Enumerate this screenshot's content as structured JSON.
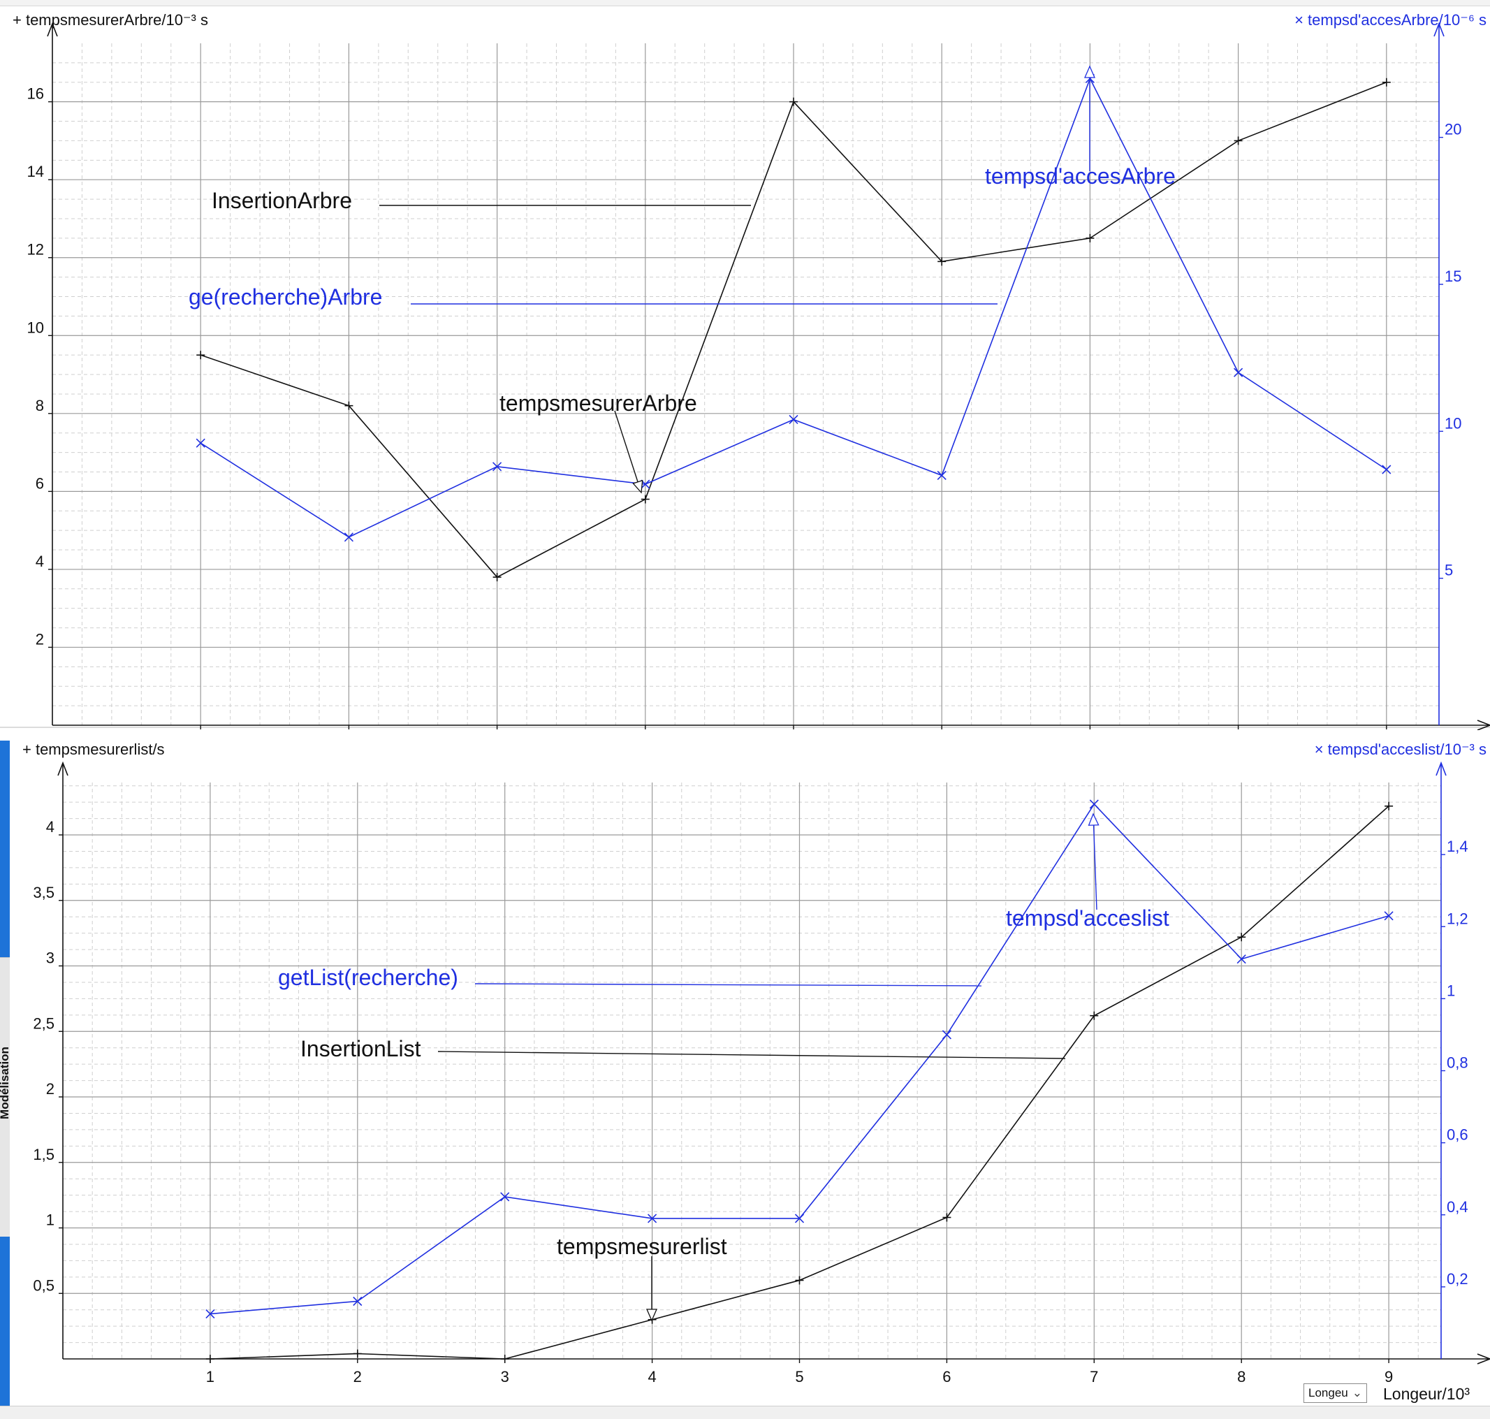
{
  "ui": {
    "side_tab_label": "Modélisation",
    "axis_selector_value": "Longeu",
    "axis_selector_chevron": "⌄"
  },
  "colors": {
    "black_series": "#111111",
    "blue_series": "#1f2fe0",
    "grid_major": "#9a9a9a",
    "grid_minor": "#cfcfcf"
  },
  "chart_data": [
    {
      "type": "line",
      "id": "arbre",
      "x": [
        1,
        2,
        3,
        4,
        5,
        6,
        7,
        8,
        9
      ],
      "xlabel": "Longeur/10³",
      "xlim": [
        0,
        9.35
      ],
      "xticks": [
        1,
        2,
        3,
        4,
        5,
        6,
        7,
        8,
        9
      ],
      "grid": true,
      "y_left": {
        "label": "+ tempsmesurerArbre/10⁻³ s",
        "lim": [
          0,
          17.5
        ],
        "ticks": [
          2,
          4,
          6,
          8,
          10,
          12,
          14,
          16
        ],
        "tick_labels": [
          "2",
          "4",
          "6",
          "8",
          "10",
          "12",
          "14",
          "16"
        ]
      },
      "y_right": {
        "label": "× tempsd'accesArbre/10⁻⁶ s",
        "lim": [
          0,
          23.2
        ],
        "ticks": [
          5,
          10,
          15,
          20
        ],
        "tick_labels": [
          "5",
          "10",
          "15",
          "20"
        ]
      },
      "series": [
        {
          "name": "tempsmesurerArbre",
          "axis": "left",
          "marker": "+",
          "color": "#111111",
          "values": [
            9.5,
            8.2,
            3.8,
            5.8,
            16.0,
            11.9,
            12.5,
            15.0,
            16.5
          ]
        },
        {
          "name": "tempsd'accesArbre",
          "axis": "right",
          "marker": "×",
          "color": "#1f2fe0",
          "values": [
            9.6,
            6.4,
            8.8,
            8.2,
            10.4,
            8.5,
            22.0,
            12.0,
            8.7
          ]
        }
      ],
      "annotations": [
        {
          "text": "InsertionArbre",
          "color": "#111111"
        },
        {
          "text": "ge(recherche)Arbre",
          "color": "#1f2fe0"
        },
        {
          "text": "tempsmesurerArbre",
          "color": "#111111"
        },
        {
          "text": "tempsd'accesArbre",
          "color": "#1f2fe0"
        }
      ]
    },
    {
      "type": "line",
      "id": "list",
      "x": [
        1,
        2,
        3,
        4,
        5,
        6,
        7,
        8,
        9
      ],
      "xlabel": "Longeur/10³",
      "xlim": [
        0,
        9.35
      ],
      "xticks": [
        1,
        2,
        3,
        4,
        5,
        6,
        7,
        8,
        9
      ],
      "grid": true,
      "y_left": {
        "label": "+ tempsmesurerlist/s",
        "lim": [
          0,
          4.4
        ],
        "ticks": [
          0.5,
          1,
          1.5,
          2,
          2.5,
          3,
          3.5,
          4
        ],
        "tick_labels": [
          "0,5",
          "1",
          "1,5",
          "2",
          "2,5",
          "3",
          "3,5",
          "4"
        ]
      },
      "y_right": {
        "label": "× tempsd'acceslist/10⁻³ s",
        "lim": [
          0,
          1.6
        ],
        "ticks": [
          0.2,
          0.4,
          0.6,
          0.8,
          1.0,
          1.2,
          1.4
        ],
        "tick_labels": [
          "0,2",
          "0,4",
          "0,6",
          "0,8",
          "1",
          "1,2",
          "1,4"
        ]
      },
      "series": [
        {
          "name": "tempsmesurerlist",
          "axis": "left",
          "marker": "+",
          "color": "#111111",
          "values": [
            0.0,
            0.04,
            0.0,
            0.3,
            0.6,
            1.08,
            2.62,
            3.22,
            4.22
          ]
        },
        {
          "name": "tempsd'acceslist",
          "axis": "right",
          "marker": "×",
          "color": "#1f2fe0",
          "values": [
            0.125,
            0.16,
            0.45,
            0.39,
            0.39,
            0.9,
            1.54,
            1.11,
            1.23
          ]
        }
      ],
      "annotations": [
        {
          "text": "getList(recherche)",
          "color": "#1f2fe0"
        },
        {
          "text": "InsertionList",
          "color": "#111111"
        },
        {
          "text": "tempsmesurerlist",
          "color": "#111111"
        },
        {
          "text": "tempsd'acceslist",
          "color": "#1f2fe0"
        }
      ]
    }
  ]
}
